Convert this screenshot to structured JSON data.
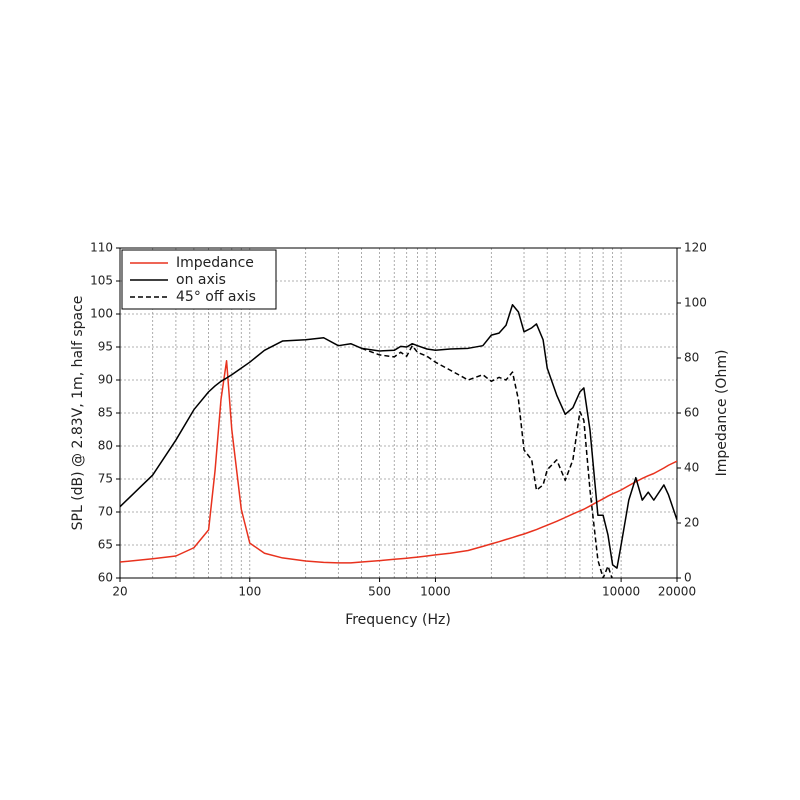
{
  "chart_data": {
    "type": "line",
    "xlabel": "Frequency (Hz)",
    "ylabel": "SPL (dB) @ 2.83V, 1m, half space",
    "y2label": "Impedance (Ohm)",
    "xscale": "log",
    "grid": true,
    "legend": "upper left",
    "xlim": [
      20,
      20000
    ],
    "xticks": [
      20,
      100,
      500,
      1000,
      10000,
      20000
    ],
    "xgrid": [
      30,
      40,
      50,
      60,
      70,
      80,
      90,
      200,
      300,
      400,
      600,
      700,
      800,
      900,
      2000,
      3000,
      4000,
      5000,
      6000,
      7000,
      8000,
      9000
    ],
    "ylim": [
      60,
      110
    ],
    "yticks": [
      60,
      65,
      70,
      75,
      80,
      85,
      90,
      95,
      100,
      105,
      110
    ],
    "y2lim": [
      0,
      120
    ],
    "y2ticks": [
      0,
      20,
      40,
      60,
      80,
      100,
      120
    ],
    "x": [
      20,
      30,
      40,
      50,
      60,
      65,
      70,
      75,
      80,
      90,
      100,
      120,
      150,
      200,
      250,
      300,
      350,
      400,
      500,
      600,
      650,
      700,
      750,
      800,
      900,
      1000,
      1200,
      1500,
      1800,
      2000,
      2200,
      2400,
      2600,
      2800,
      3000,
      3300,
      3500,
      3800,
      4000,
      4500,
      5000,
      5500,
      6000,
      6300,
      6800,
      7500,
      8000,
      8500,
      9000,
      9500,
      10000,
      11000,
      12000,
      13000,
      14000,
      15000,
      17000,
      18000,
      20000
    ],
    "series": [
      {
        "name": "Impedance",
        "color": "#e8321e",
        "style": "solid",
        "axis": "y2",
        "values": [
          5.8,
          7,
          8,
          11,
          17.5,
          39,
          65,
          79,
          54,
          25,
          12.7,
          9,
          7.3,
          6.2,
          5.7,
          5.5,
          5.5,
          5.8,
          6.3,
          6.8,
          7,
          7.2,
          7.4,
          7.6,
          8,
          8.4,
          9,
          10,
          11.5,
          12.4,
          13.2,
          14,
          14.7,
          15.4,
          16,
          17,
          17.6,
          18.6,
          19.2,
          20.6,
          22,
          23.3,
          24.4,
          25,
          26.2,
          27.8,
          28.8,
          29.8,
          30.6,
          31.3,
          32,
          33.6,
          35,
          36.2,
          37.2,
          38,
          40,
          41,
          42.5
        ]
      },
      {
        "name": "on axis",
        "color": "#000000",
        "style": "solid",
        "values": [
          70.8,
          75.6,
          80.9,
          85.5,
          88.2,
          89.1,
          89.8,
          90.3,
          90.8,
          91.8,
          92.7,
          94.5,
          95.9,
          96.1,
          96.4,
          95.2,
          95.5,
          94.8,
          94.4,
          94.5,
          95.1,
          95,
          95.5,
          95.2,
          94.7,
          94.5,
          94.7,
          94.8,
          95.2,
          96.8,
          97.1,
          98.3,
          101.4,
          100.3,
          97.3,
          97.9,
          98.5,
          96.1,
          91.8,
          87.7,
          84.8,
          85.8,
          88.2,
          88.8,
          82.4,
          69.5,
          69.5,
          66.5,
          62,
          61.5,
          65,
          71.8,
          75.2,
          71.8,
          73,
          71.8,
          74.1,
          72.6,
          68.8
        ]
      },
      {
        "name": "45° off axis",
        "color": "#000000",
        "style": "dashed",
        "values": [
          null,
          null,
          null,
          null,
          null,
          null,
          null,
          null,
          null,
          null,
          null,
          null,
          null,
          null,
          null,
          null,
          null,
          94.8,
          93.8,
          93.5,
          94.2,
          93.6,
          95.2,
          94.2,
          93.6,
          92.7,
          91.5,
          90,
          90.8,
          89.8,
          90.4,
          90,
          91.2,
          87,
          79.4,
          77.9,
          73.3,
          74.1,
          76.4,
          77.9,
          74.8,
          77.9,
          85.2,
          83.9,
          73.3,
          62.7,
          60,
          61.8,
          59.7,
          null,
          null,
          null,
          null,
          null,
          null,
          null,
          null,
          null,
          null
        ]
      }
    ]
  }
}
